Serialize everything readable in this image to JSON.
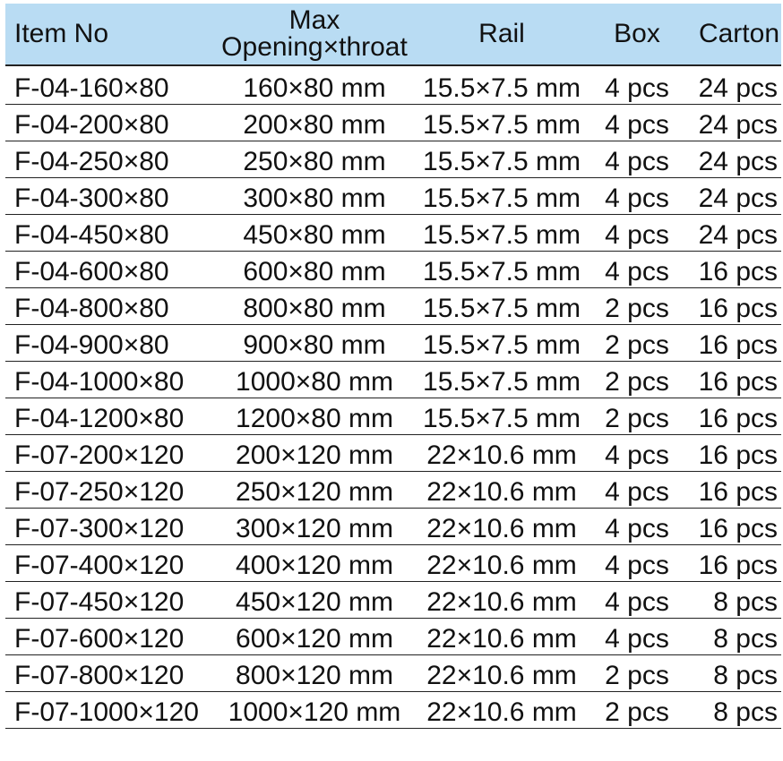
{
  "table": {
    "headers": {
      "item_no": "Item No",
      "opening_line1": "Max",
      "opening_line2": "Opening×throat",
      "rail": "Rail",
      "box": "Box",
      "carton": "Carton"
    },
    "rows": [
      {
        "item": "F-04-160×80",
        "opening": "160×80 mm",
        "rail": "15.5×7.5 mm",
        "box": "4 pcs",
        "carton": "24 pcs"
      },
      {
        "item": "F-04-200×80",
        "opening": "200×80 mm",
        "rail": "15.5×7.5 mm",
        "box": "4 pcs",
        "carton": "24 pcs"
      },
      {
        "item": "F-04-250×80",
        "opening": "250×80 mm",
        "rail": "15.5×7.5 mm",
        "box": "4 pcs",
        "carton": "24 pcs"
      },
      {
        "item": "F-04-300×80",
        "opening": "300×80 mm",
        "rail": "15.5×7.5 mm",
        "box": "4 pcs",
        "carton": "24 pcs"
      },
      {
        "item": "F-04-450×80",
        "opening": "450×80 mm",
        "rail": "15.5×7.5 mm",
        "box": "4 pcs",
        "carton": "24 pcs"
      },
      {
        "item": "F-04-600×80",
        "opening": "600×80 mm",
        "rail": "15.5×7.5 mm",
        "box": "4 pcs",
        "carton": "16 pcs"
      },
      {
        "item": "F-04-800×80",
        "opening": "800×80 mm",
        "rail": "15.5×7.5 mm",
        "box": "2 pcs",
        "carton": "16 pcs"
      },
      {
        "item": "F-04-900×80",
        "opening": "900×80 mm",
        "rail": "15.5×7.5 mm",
        "box": "2 pcs",
        "carton": "16 pcs"
      },
      {
        "item": "F-04-1000×80",
        "opening": "1000×80 mm",
        "rail": "15.5×7.5 mm",
        "box": "2 pcs",
        "carton": "16 pcs"
      },
      {
        "item": "F-04-1200×80",
        "opening": "1200×80 mm",
        "rail": "15.5×7.5 mm",
        "box": "2 pcs",
        "carton": "16 pcs"
      },
      {
        "item": "F-07-200×120",
        "opening": "200×120 mm",
        "rail": "22×10.6 mm",
        "box": "4 pcs",
        "carton": "16 pcs"
      },
      {
        "item": "F-07-250×120",
        "opening": "250×120 mm",
        "rail": "22×10.6 mm",
        "box": "4 pcs",
        "carton": "16 pcs"
      },
      {
        "item": "F-07-300×120",
        "opening": "300×120 mm",
        "rail": "22×10.6 mm",
        "box": "4 pcs",
        "carton": "16 pcs"
      },
      {
        "item": "F-07-400×120",
        "opening": "400×120 mm",
        "rail": "22×10.6 mm",
        "box": "4 pcs",
        "carton": "16 pcs"
      },
      {
        "item": "F-07-450×120",
        "opening": "450×120 mm",
        "rail": "22×10.6 mm",
        "box": "4 pcs",
        "carton": "8 pcs"
      },
      {
        "item": "F-07-600×120",
        "opening": "600×120 mm",
        "rail": "22×10.6 mm",
        "box": "4 pcs",
        "carton": "8 pcs"
      },
      {
        "item": "F-07-800×120",
        "opening": "800×120 mm",
        "rail": "22×10.6 mm",
        "box": "2 pcs",
        "carton": "8 pcs"
      },
      {
        "item": "F-07-1000×120",
        "opening": "1000×120 mm",
        "rail": "22×10.6 mm",
        "box": "2 pcs",
        "carton": "8 pcs"
      }
    ]
  },
  "colors": {
    "header_background": "#b9dcf3",
    "text": "#111111",
    "rule": "#222222"
  }
}
